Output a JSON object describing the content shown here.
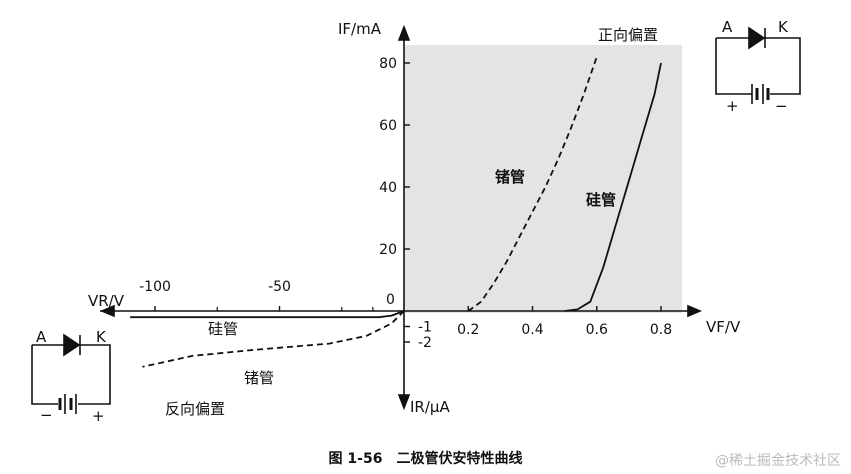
{
  "chart_data": {
    "type": "line",
    "title": "",
    "xlabel_forward": "VF/V",
    "xlabel_reverse": "VR/V",
    "ylabel_forward": "IF/mA",
    "ylabel_reverse": "IR/μA",
    "x_forward_ticks": [
      0.2,
      0.4,
      0.6,
      0.8
    ],
    "x_reverse_ticks": [
      -100,
      -50
    ],
    "y_forward_ticks": [
      0,
      20,
      40,
      60,
      80
    ],
    "y_reverse_ticks": [
      -1,
      -2
    ],
    "tick_labels": {
      "xf": [
        "0.2",
        "0.4",
        "0.6",
        "0.8"
      ],
      "xr": [
        "-100",
        "-50"
      ],
      "yf": [
        "0",
        "20",
        "40",
        "60",
        "80"
      ],
      "yr": [
        "-1",
        "-2"
      ]
    },
    "xlim_forward": [
      0,
      0.85
    ],
    "ylim_forward": [
      0,
      85
    ],
    "series": [
      {
        "name": "硅管",
        "region": "forward",
        "style": "solid",
        "x": [
          0.5,
          0.54,
          0.58,
          0.62,
          0.66,
          0.7,
          0.74,
          0.78,
          0.8
        ],
        "y": [
          0,
          0.5,
          3,
          14,
          28,
          42,
          56,
          70,
          80
        ]
      },
      {
        "name": "锗管",
        "region": "forward",
        "style": "dashed",
        "x": [
          0.2,
          0.24,
          0.28,
          0.32,
          0.36,
          0.4,
          0.44,
          0.48,
          0.52,
          0.56,
          0.6
        ],
        "y": [
          0,
          3,
          9,
          16,
          24,
          32,
          40,
          49,
          59,
          70,
          82
        ]
      },
      {
        "name": "硅管",
        "region": "reverse",
        "style": "solid",
        "vr": [
          0,
          -5,
          -10,
          -20,
          -50,
          -100,
          -110
        ],
        "ir": [
          0,
          -0.3,
          -0.4,
          -0.4,
          -0.4,
          -0.4,
          -0.4
        ]
      },
      {
        "name": "锗管",
        "region": "reverse",
        "style": "dashed",
        "vr": [
          0,
          -5,
          -15,
          -30,
          -60,
          -85,
          -105
        ],
        "ir": [
          0,
          -0.8,
          -1.6,
          -2.1,
          -2.5,
          -2.9,
          -3.6
        ]
      }
    ],
    "annotations": {
      "forward_bias": "正向偏置",
      "reverse_bias": "反向偏置",
      "si_forward": "硅管",
      "ge_forward": "锗管",
      "si_reverse": "硅管",
      "ge_reverse": "锗管",
      "origin": "0"
    },
    "circuit_forward": {
      "anode": "A",
      "cathode": "K",
      "plus": "+",
      "minus": "−"
    },
    "circuit_reverse": {
      "anode": "A",
      "cathode": "K",
      "plus": "+",
      "minus": "−"
    },
    "caption": "图 1-56　二极管伏安特性曲线",
    "watermark": "@稀土掘金技术社区"
  }
}
